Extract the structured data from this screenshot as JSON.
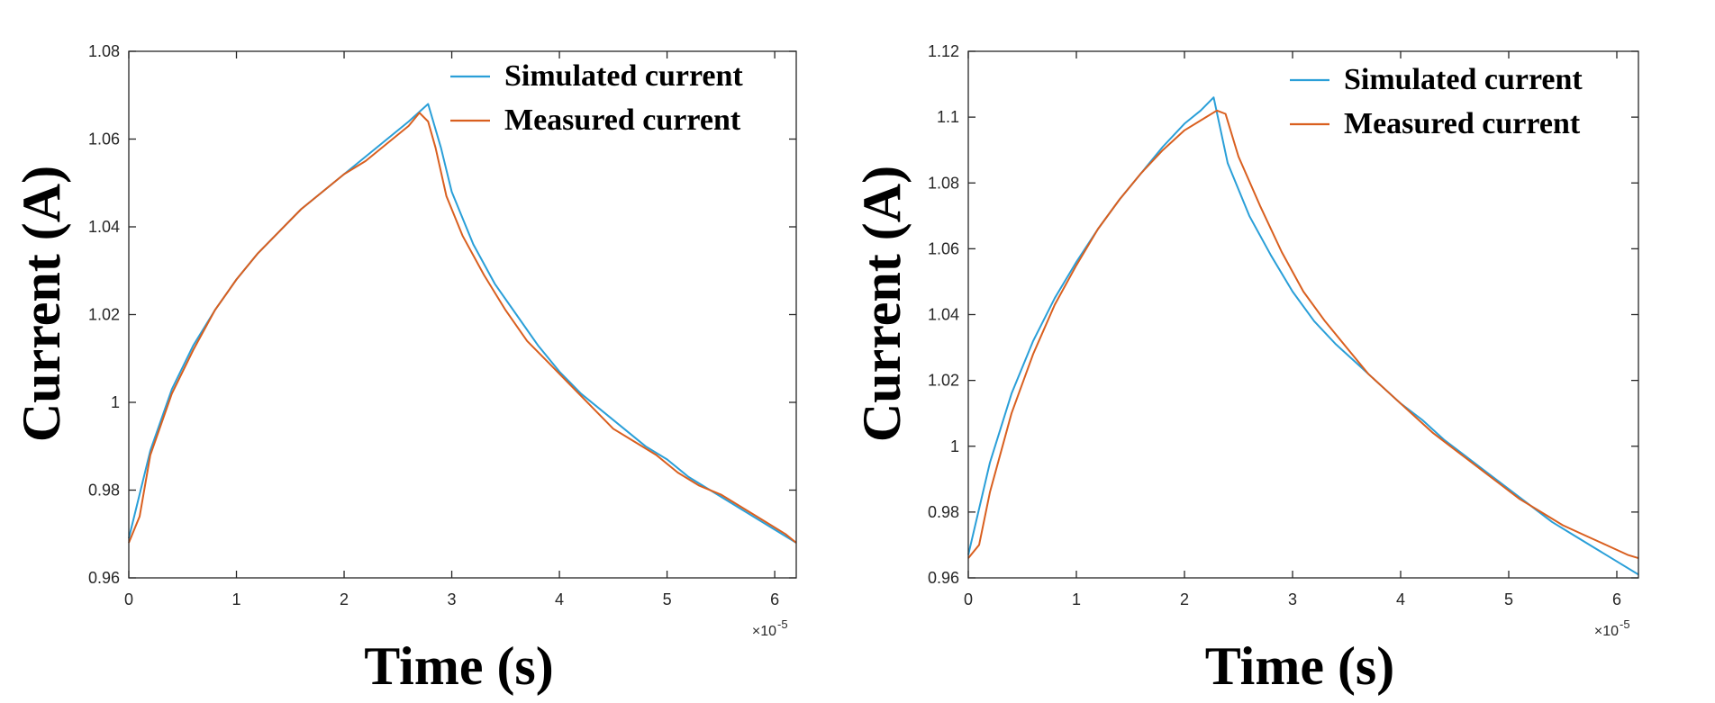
{
  "chart_data": [
    {
      "type": "line",
      "title": "",
      "xlabel": "Time (s)",
      "ylabel": "Current (A)",
      "x_exponent": "×10",
      "x_exponent_power": "-5",
      "xlim": [
        0,
        6.2
      ],
      "ylim": [
        0.96,
        1.08
      ],
      "xticks": [
        0,
        1,
        2,
        3,
        4,
        5,
        6
      ],
      "xtick_labels": [
        "0",
        "1",
        "2",
        "3",
        "4",
        "5",
        "6"
      ],
      "yticks": [
        0.96,
        0.98,
        1.0,
        1.02,
        1.04,
        1.06,
        1.08
      ],
      "ytick_labels": [
        "0.96",
        "0.98",
        "1",
        "1.02",
        "1.04",
        "1.06",
        "1.08"
      ],
      "grid": false,
      "legend_position": "top-right",
      "series": [
        {
          "name": "Simulated current",
          "color": "#2a9fd8",
          "x": [
            0,
            0.2,
            0.4,
            0.6,
            0.8,
            1.0,
            1.2,
            1.4,
            1.6,
            1.8,
            2.0,
            2.2,
            2.4,
            2.6,
            2.78,
            2.9,
            3.0,
            3.2,
            3.4,
            3.6,
            3.8,
            4.0,
            4.2,
            4.4,
            4.6,
            4.8,
            5.0,
            5.2,
            5.4,
            5.6,
            5.8,
            6.0,
            6.2
          ],
          "y": [
            0.969,
            0.989,
            1.003,
            1.013,
            1.021,
            1.028,
            1.034,
            1.039,
            1.044,
            1.048,
            1.052,
            1.056,
            1.06,
            1.064,
            1.068,
            1.058,
            1.048,
            1.036,
            1.027,
            1.02,
            1.013,
            1.007,
            1.002,
            0.998,
            0.994,
            0.99,
            0.987,
            0.983,
            0.98,
            0.977,
            0.974,
            0.971,
            0.968
          ]
        },
        {
          "name": "Measured current",
          "color": "#d95f1f",
          "x": [
            0,
            0.1,
            0.2,
            0.4,
            0.6,
            0.8,
            1.0,
            1.2,
            1.4,
            1.6,
            1.8,
            2.0,
            2.2,
            2.4,
            2.6,
            2.7,
            2.78,
            2.85,
            2.95,
            3.1,
            3.3,
            3.5,
            3.7,
            3.9,
            4.1,
            4.3,
            4.5,
            4.7,
            4.9,
            5.1,
            5.3,
            5.5,
            5.7,
            5.9,
            6.1,
            6.2
          ],
          "y": [
            0.968,
            0.974,
            0.988,
            1.002,
            1.012,
            1.021,
            1.028,
            1.034,
            1.039,
            1.044,
            1.048,
            1.052,
            1.055,
            1.059,
            1.063,
            1.066,
            1.064,
            1.058,
            1.047,
            1.038,
            1.029,
            1.021,
            1.014,
            1.009,
            1.004,
            0.999,
            0.994,
            0.991,
            0.988,
            0.984,
            0.981,
            0.979,
            0.976,
            0.973,
            0.97,
            0.968
          ]
        }
      ]
    },
    {
      "type": "line",
      "title": "",
      "xlabel": "Time (s)",
      "ylabel": "Current (A)",
      "x_exponent": "×10",
      "x_exponent_power": "-5",
      "xlim": [
        0,
        6.2
      ],
      "ylim": [
        0.96,
        1.12
      ],
      "xticks": [
        0,
        1,
        2,
        3,
        4,
        5,
        6
      ],
      "xtick_labels": [
        "0",
        "1",
        "2",
        "3",
        "4",
        "5",
        "6"
      ],
      "yticks": [
        0.96,
        0.98,
        1.0,
        1.02,
        1.04,
        1.06,
        1.08,
        1.1,
        1.12
      ],
      "ytick_labels": [
        "0.96",
        "0.98",
        "1",
        "1.02",
        "1.04",
        "1.06",
        "1.08",
        "1.1",
        "1.12"
      ],
      "grid": false,
      "legend_position": "top-right",
      "series": [
        {
          "name": "Simulated current",
          "color": "#2a9fd8",
          "x": [
            0,
            0.2,
            0.4,
            0.6,
            0.8,
            1.0,
            1.2,
            1.4,
            1.6,
            1.8,
            2.0,
            2.15,
            2.27,
            2.4,
            2.6,
            2.8,
            3.0,
            3.2,
            3.4,
            3.6,
            3.8,
            4.0,
            4.2,
            4.4,
            4.6,
            4.8,
            5.0,
            5.2,
            5.4,
            5.6,
            5.8,
            6.0,
            6.2
          ],
          "y": [
            0.967,
            0.995,
            1.016,
            1.032,
            1.045,
            1.056,
            1.066,
            1.075,
            1.083,
            1.091,
            1.098,
            1.102,
            1.106,
            1.086,
            1.07,
            1.058,
            1.047,
            1.038,
            1.031,
            1.025,
            1.019,
            1.013,
            1.008,
            1.002,
            0.997,
            0.992,
            0.987,
            0.982,
            0.977,
            0.973,
            0.969,
            0.965,
            0.961
          ]
        },
        {
          "name": "Measured current",
          "color": "#d95f1f",
          "x": [
            0,
            0.1,
            0.2,
            0.4,
            0.6,
            0.8,
            1.0,
            1.2,
            1.4,
            1.6,
            1.8,
            2.0,
            2.2,
            2.3,
            2.38,
            2.5,
            2.7,
            2.9,
            3.1,
            3.3,
            3.5,
            3.7,
            3.9,
            4.1,
            4.3,
            4.5,
            4.7,
            4.9,
            5.1,
            5.3,
            5.5,
            5.7,
            5.9,
            6.1,
            6.2
          ],
          "y": [
            0.966,
            0.97,
            0.986,
            1.01,
            1.028,
            1.043,
            1.055,
            1.066,
            1.075,
            1.083,
            1.09,
            1.096,
            1.1,
            1.102,
            1.101,
            1.088,
            1.073,
            1.059,
            1.047,
            1.038,
            1.03,
            1.022,
            1.016,
            1.01,
            1.004,
            0.999,
            0.994,
            0.989,
            0.984,
            0.98,
            0.976,
            0.973,
            0.97,
            0.967,
            0.966
          ]
        }
      ]
    }
  ]
}
